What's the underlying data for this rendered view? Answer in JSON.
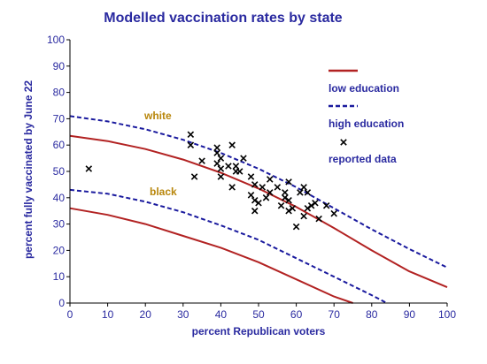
{
  "chart_data": {
    "type": "scatter",
    "title": "Modelled vaccination rates by state",
    "xlabel": "percent Republican voters",
    "ylabel": "percent fully vaccinated by June 22",
    "xlim": [
      0,
      100
    ],
    "ylim": [
      0,
      100
    ],
    "x_ticks": [
      "0",
      "10",
      "20",
      "30",
      "40",
      "50",
      "60",
      "70",
      "80",
      "90",
      "100"
    ],
    "y_ticks": [
      "0",
      "10",
      "20",
      "30",
      "40",
      "50",
      "60",
      "70",
      "80",
      "90",
      "100"
    ],
    "grid": false,
    "legend_position": "top-right",
    "legend": {
      "low": "low education",
      "high": "high education",
      "reported": "reported data"
    },
    "annotations": {
      "white": "white",
      "black": "black"
    },
    "colors": {
      "text": "#2a2aa0",
      "low": "#b22222",
      "high": "#1a1a9e",
      "points": "#000000",
      "annotation": "#b8860b"
    },
    "curves": [
      {
        "group": "white",
        "education": "low",
        "style": "solid",
        "x": [
          0,
          10,
          20,
          30,
          40,
          50,
          60,
          70,
          80,
          90,
          100
        ],
        "y": [
          63.5,
          61.5,
          58.5,
          54.5,
          49.5,
          43.5,
          36.5,
          28.5,
          20,
          12,
          6
        ]
      },
      {
        "group": "white",
        "education": "high",
        "style": "dashed",
        "x": [
          0,
          10,
          20,
          30,
          40,
          50,
          60,
          70,
          80,
          90,
          100
        ],
        "y": [
          71,
          69,
          66,
          62,
          57,
          51,
          44,
          36,
          28,
          20.5,
          13.5
        ]
      },
      {
        "group": "black",
        "education": "low",
        "style": "solid",
        "x": [
          0,
          10,
          20,
          30,
          40,
          50,
          60,
          70,
          75
        ],
        "y": [
          36,
          33.5,
          30,
          25.5,
          21,
          15.5,
          9,
          2.5,
          0
        ]
      },
      {
        "group": "black",
        "education": "high",
        "style": "dashed",
        "x": [
          0,
          10,
          20,
          30,
          40,
          50,
          60,
          70,
          80,
          84
        ],
        "y": [
          43,
          41.5,
          38.5,
          34.5,
          29.5,
          24,
          17,
          10,
          3,
          0
        ]
      }
    ],
    "points": [
      {
        "x": 5,
        "y": 51
      },
      {
        "x": 32,
        "y": 64
      },
      {
        "x": 32,
        "y": 60
      },
      {
        "x": 33,
        "y": 48
      },
      {
        "x": 35,
        "y": 54
      },
      {
        "x": 39,
        "y": 59
      },
      {
        "x": 39,
        "y": 57
      },
      {
        "x": 39,
        "y": 53
      },
      {
        "x": 40,
        "y": 55
      },
      {
        "x": 40,
        "y": 51
      },
      {
        "x": 40,
        "y": 48
      },
      {
        "x": 42,
        "y": 52
      },
      {
        "x": 43,
        "y": 60
      },
      {
        "x": 43,
        "y": 44
      },
      {
        "x": 44,
        "y": 52
      },
      {
        "x": 44,
        "y": 50
      },
      {
        "x": 45,
        "y": 50
      },
      {
        "x": 46,
        "y": 55
      },
      {
        "x": 48,
        "y": 41
      },
      {
        "x": 48,
        "y": 48
      },
      {
        "x": 49,
        "y": 45
      },
      {
        "x": 49,
        "y": 39
      },
      {
        "x": 49,
        "y": 35
      },
      {
        "x": 50,
        "y": 38
      },
      {
        "x": 51,
        "y": 44
      },
      {
        "x": 52,
        "y": 40
      },
      {
        "x": 53,
        "y": 47
      },
      {
        "x": 53,
        "y": 42
      },
      {
        "x": 55,
        "y": 44
      },
      {
        "x": 56,
        "y": 37
      },
      {
        "x": 57,
        "y": 42
      },
      {
        "x": 57,
        "y": 40
      },
      {
        "x": 58,
        "y": 39
      },
      {
        "x": 58,
        "y": 35
      },
      {
        "x": 58,
        "y": 46
      },
      {
        "x": 59,
        "y": 36
      },
      {
        "x": 60,
        "y": 29
      },
      {
        "x": 61,
        "y": 42
      },
      {
        "x": 62,
        "y": 44
      },
      {
        "x": 62,
        "y": 33
      },
      {
        "x": 63,
        "y": 36
      },
      {
        "x": 63,
        "y": 42
      },
      {
        "x": 64,
        "y": 37
      },
      {
        "x": 65,
        "y": 38
      },
      {
        "x": 66,
        "y": 32
      },
      {
        "x": 68,
        "y": 37
      },
      {
        "x": 70,
        "y": 34
      }
    ]
  }
}
